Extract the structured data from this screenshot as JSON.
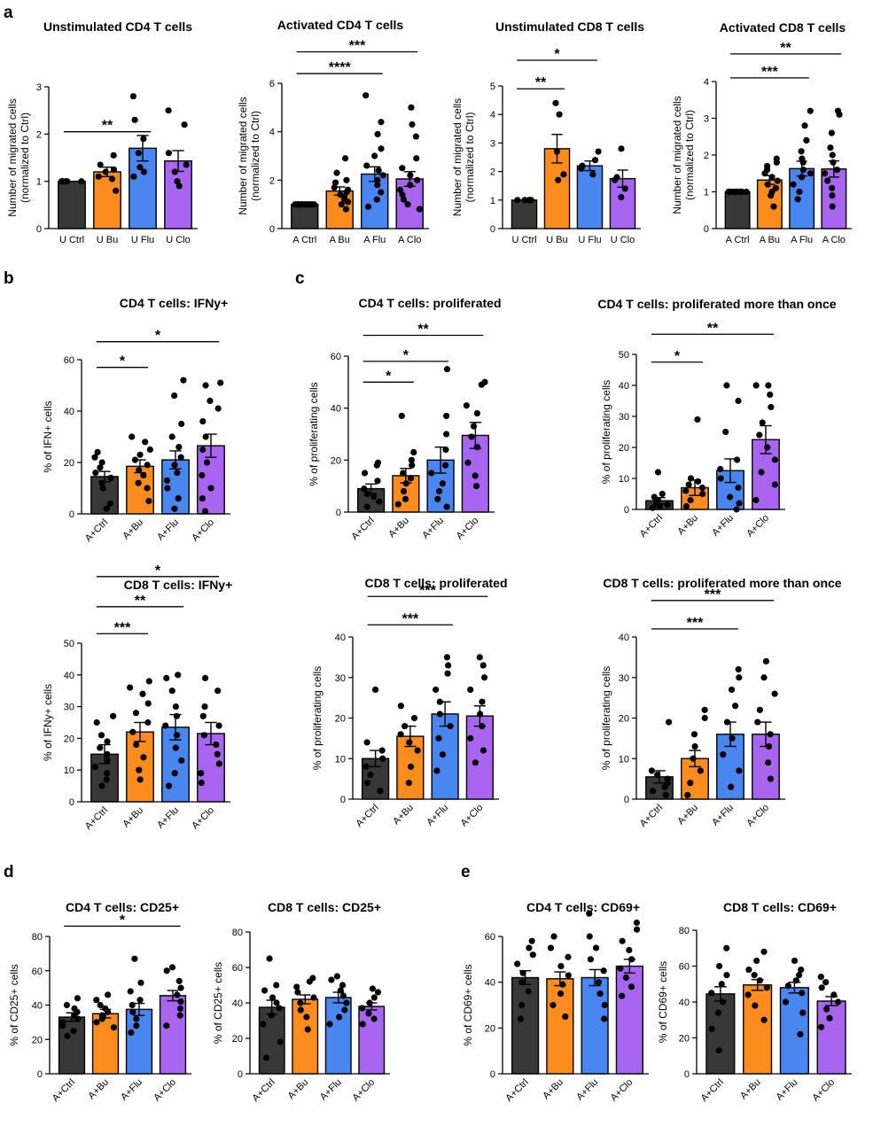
{
  "panel_labels": [
    "a",
    "b",
    "c",
    "d",
    "e"
  ],
  "colors": {
    "ctrl": "#383838",
    "bu": "#fb8c1d",
    "flu": "#4a86ef",
    "clo": "#a865f0"
  },
  "chart_data": [
    {
      "type": "bar",
      "panel": "a",
      "title": "Unstimulated CD4 T cells",
      "ylabel": "Number of migrated cells\n(normalized to Ctrl)",
      "categories": [
        "U Ctrl",
        "U Bu",
        "U Flu",
        "U Clo"
      ],
      "ylim": [
        0,
        3
      ],
      "yticks": [
        0,
        1,
        2,
        3
      ],
      "values": [
        1.0,
        1.2,
        1.7,
        1.43
      ],
      "errors": [
        0.0,
        0.1,
        0.27,
        0.22
      ],
      "points": [
        [
          1,
          1,
          1,
          1,
          1,
          1,
          1
        ],
        [
          0.8,
          1.05,
          1.1,
          1.2,
          1.25,
          1.35,
          1.55
        ],
        [
          1.1,
          1.2,
          1.3,
          1.6,
          1.9,
          2.3,
          2.8
        ],
        [
          0.9,
          1.0,
          1.2,
          1.35,
          1.6,
          2.2,
          2.5
        ]
      ],
      "significance": [
        {
          "from": 0,
          "to": 2,
          "label": "**",
          "y": 2.05
        }
      ]
    },
    {
      "type": "bar",
      "panel": "a",
      "title": "Activated CD4 T cells",
      "ylabel": "Number of migrated cells\n(normalized to Ctrl)",
      "categories": [
        "A Ctrl",
        "A Bu",
        "A Flu",
        "A Clo"
      ],
      "ylim": [
        0,
        6
      ],
      "yticks": [
        0,
        2,
        4,
        6
      ],
      "values": [
        1.0,
        1.55,
        2.25,
        2.05
      ],
      "errors": [
        0.0,
        0.17,
        0.3,
        0.3
      ],
      "points": [
        [
          1,
          1,
          1,
          1,
          1,
          1,
          1,
          1,
          1,
          1,
          1,
          1,
          1,
          1
        ],
        [
          0.8,
          1.0,
          1.1,
          1.2,
          1.3,
          1.4,
          1.5,
          1.6,
          1.7,
          1.9,
          2.0,
          2.3,
          2.9
        ],
        [
          0.9,
          1.2,
          1.5,
          1.8,
          2.0,
          2.2,
          2.4,
          2.6,
          3.0,
          3.3,
          3.9,
          4.4,
          5.5
        ],
        [
          0.8,
          1.0,
          1.2,
          1.4,
          1.6,
          1.8,
          2.0,
          2.2,
          2.5,
          2.9,
          3.8,
          4.3,
          5.0
        ]
      ],
      "significance": [
        {
          "from": 0,
          "to": 2,
          "label": "****",
          "y": 6.4
        },
        {
          "from": 0,
          "to": 3,
          "label": "***",
          "y": 7.3
        }
      ]
    },
    {
      "type": "bar",
      "panel": "a",
      "title": "Unstimulated CD8 T cells",
      "ylabel": "Number of migrated cells\n(normalized to Ctrl)",
      "categories": [
        "U Ctrl",
        "U Bu",
        "U Flu",
        "U Clo"
      ],
      "ylim": [
        0,
        5
      ],
      "yticks": [
        0,
        1,
        2,
        3,
        4,
        5
      ],
      "values": [
        1.0,
        2.8,
        2.2,
        1.75
      ],
      "errors": [
        0.0,
        0.5,
        0.17,
        0.3
      ],
      "points": [
        [
          1,
          1,
          1,
          1,
          1
        ],
        [
          1.7,
          1.9,
          2.7,
          4.0,
          4.4
        ],
        [
          1.9,
          2.1,
          2.2,
          2.4,
          2.7
        ],
        [
          1.1,
          1.4,
          1.7,
          1.8,
          2.8
        ]
      ],
      "significance": [
        {
          "from": 0,
          "to": 1,
          "label": "**",
          "y": 4.9
        },
        {
          "from": 0,
          "to": 2,
          "label": "*",
          "y": 5.9
        }
      ]
    },
    {
      "type": "bar",
      "panel": "a",
      "title": "Activated CD8 T cells",
      "ylabel": "Number of migrated cells\n(normalized to Ctrl)",
      "categories": [
        "A Ctrl",
        "A Bu",
        "A Flu",
        "A Clo"
      ],
      "ylim": [
        0,
        4
      ],
      "yticks": [
        0,
        1,
        2,
        3,
        4
      ],
      "values": [
        1.0,
        1.32,
        1.63,
        1.62
      ],
      "errors": [
        0.0,
        0.12,
        0.2,
        0.22
      ],
      "points": [
        [
          1,
          1,
          1,
          1,
          1,
          1,
          1,
          1,
          1,
          1,
          1,
          1,
          1
        ],
        [
          0.6,
          0.9,
          1.0,
          1.1,
          1.2,
          1.3,
          1.4,
          1.5,
          1.6,
          1.7,
          1.8,
          1.9
        ],
        [
          0.8,
          1.0,
          1.2,
          1.4,
          1.5,
          1.6,
          1.8,
          1.9,
          2.1,
          2.4,
          2.8,
          3.2
        ],
        [
          0.6,
          0.9,
          1.1,
          1.3,
          1.5,
          1.6,
          1.8,
          2.0,
          2.2,
          2.6,
          3.1,
          3.2
        ]
      ],
      "significance": [
        {
          "from": 0,
          "to": 2,
          "label": "***",
          "y": 4.1
        },
        {
          "from": 0,
          "to": 3,
          "label": "**",
          "y": 4.75
        }
      ]
    },
    {
      "type": "bar",
      "panel": "b",
      "title": "CD4 T cells: IFNy+",
      "ylabel": "% of  IFN+ cells",
      "categories": [
        "A+Ctrl",
        "A+Bu",
        "A+Flu",
        "A+Clo"
      ],
      "ylim": [
        0,
        60
      ],
      "yticks": [
        0,
        20,
        40,
        60
      ],
      "values": [
        14.5,
        18.5,
        21.0,
        26.5
      ],
      "errors": [
        2.0,
        2.5,
        3.5,
        4.5
      ],
      "points": [
        [
          2,
          4,
          10,
          12,
          14,
          16,
          18,
          20,
          22,
          24
        ],
        [
          5,
          10,
          12,
          15,
          17,
          19,
          21,
          23,
          25,
          28,
          30
        ],
        [
          2,
          6,
          10,
          13,
          16,
          19,
          22,
          26,
          30,
          35,
          46,
          52
        ],
        [
          1,
          6,
          10,
          15,
          20,
          25,
          30,
          36,
          41,
          44,
          50,
          51
        ]
      ],
      "significance": [
        {
          "from": 0,
          "to": 1,
          "label": "*",
          "y": 57
        },
        {
          "from": 0,
          "to": 3,
          "label": "*",
          "y": 67
        }
      ]
    },
    {
      "type": "bar",
      "panel": "c",
      "title": "CD4 T cells: proliferated",
      "ylabel": "% of proliferating cells",
      "categories": [
        "A+Ctrl",
        "A+Bu",
        "A+Flu",
        "A+Clo"
      ],
      "ylim": [
        0,
        60
      ],
      "yticks": [
        0,
        20,
        40,
        60
      ],
      "values": [
        9.0,
        14.0,
        20.0,
        29.5
      ],
      "errors": [
        1.8,
        2.8,
        5.0,
        5.0
      ],
      "points": [
        [
          2,
          4,
          6,
          7,
          9,
          12,
          15,
          18,
          19
        ],
        [
          3,
          5,
          8,
          11,
          13,
          15,
          18,
          20,
          23,
          37
        ],
        [
          2,
          5,
          8,
          11,
          15,
          18,
          24,
          30,
          37,
          55
        ],
        [
          10,
          14,
          19,
          25,
          29,
          33,
          38,
          41,
          49,
          50
        ]
      ],
      "significance": [
        {
          "from": 0,
          "to": 1,
          "label": "*",
          "y": 50
        },
        {
          "from": 0,
          "to": 2,
          "label": "*",
          "y": 58
        },
        {
          "from": 0,
          "to": 3,
          "label": "**",
          "y": 68
        }
      ]
    },
    {
      "type": "bar",
      "panel": "c",
      "title": "CD4 T cells: proliferated more than once",
      "ylabel": "% of proliferating cells",
      "categories": [
        "A+Ctrl",
        "A+Bu",
        "A+Flu",
        "A+Clo"
      ],
      "ylim": [
        0,
        50
      ],
      "yticks": [
        0,
        10,
        20,
        30,
        40,
        50
      ],
      "values": [
        2.8,
        7.0,
        12.5,
        22.5
      ],
      "errors": [
        1.0,
        2.5,
        3.8,
        4.5
      ],
      "points": [
        [
          0.5,
          1,
          1.5,
          2,
          3,
          4,
          5,
          12
        ],
        [
          1,
          3,
          5,
          6,
          7,
          8,
          9,
          10,
          29
        ],
        [
          0,
          2,
          4,
          7,
          10,
          13,
          16,
          25,
          35,
          40
        ],
        [
          3,
          8,
          12,
          16,
          20,
          24,
          28,
          33,
          37,
          40,
          40
        ]
      ],
      "significance": [
        {
          "from": 0,
          "to": 1,
          "label": "*",
          "y": 47.5
        },
        {
          "from": 0,
          "to": 3,
          "label": "**",
          "y": 56.5
        }
      ]
    },
    {
      "type": "bar",
      "panel": "b",
      "title": "CD8 T cells: IFNy+",
      "ylabel": "% of IFNy+ cells",
      "categories": [
        "A+Ctrl",
        "A+Bu",
        "A+Flu",
        "A+Clo"
      ],
      "ylim": [
        0,
        50
      ],
      "yticks": [
        0,
        10,
        20,
        30,
        40,
        50
      ],
      "values": [
        15.0,
        22.0,
        23.5,
        21.5
      ],
      "errors": [
        3.0,
        3.0,
        4.0,
        3.5
      ],
      "points": [
        [
          5,
          7,
          9,
          11,
          13,
          15,
          17,
          19,
          21,
          25,
          27
        ],
        [
          7,
          10,
          14,
          18,
          22,
          25,
          28,
          31,
          34,
          36,
          38
        ],
        [
          5,
          9,
          13,
          17,
          21,
          24,
          27,
          30,
          35,
          39,
          40
        ],
        [
          6,
          9,
          12,
          15,
          18,
          21,
          24,
          27,
          30,
          35,
          39
        ]
      ],
      "significance": [
        {
          "from": 0,
          "to": 1,
          "label": "***",
          "y": 53
        },
        {
          "from": 0,
          "to": 2,
          "label": "**",
          "y": 61.5
        },
        {
          "from": 0,
          "to": 3,
          "label": "*",
          "y": 71
        }
      ]
    },
    {
      "type": "bar",
      "panel": "c",
      "title": "CD8 T cells: proliferated",
      "ylabel": "% of proliferating cells",
      "categories": [
        "A+Ctrl",
        "A+Bu",
        "A+Flu",
        "A+Clo"
      ],
      "ylim": [
        0,
        40
      ],
      "yticks": [
        0,
        10,
        20,
        30,
        40
      ],
      "values": [
        10.0,
        15.5,
        21.0,
        20.5
      ],
      "errors": [
        2.0,
        2.5,
        3.0,
        2.5
      ],
      "points": [
        [
          2,
          4,
          6,
          8,
          10,
          12,
          14,
          27
        ],
        [
          4,
          8,
          12,
          14,
          16,
          18,
          20,
          23
        ],
        [
          7,
          11,
          15,
          18,
          21,
          24,
          27,
          31,
          33,
          35
        ],
        [
          9,
          12,
          15,
          18,
          21,
          24,
          27,
          30,
          33,
          35
        ]
      ],
      "significance": [
        {
          "from": 0,
          "to": 2,
          "label": "***",
          "y": 43
        },
        {
          "from": 0,
          "to": 3,
          "label": "***",
          "y": 50
        }
      ]
    },
    {
      "type": "bar",
      "panel": "c",
      "title": "CD8 T cells: proliferated more than once",
      "ylabel": "% of proliferating cells",
      "categories": [
        "A+Ctrl",
        "A+Bu",
        "A+Flu",
        "A+Clo"
      ],
      "ylim": [
        0,
        40
      ],
      "yticks": [
        0,
        10,
        20,
        30,
        40
      ],
      "values": [
        5.5,
        10.0,
        16.0,
        16.0
      ],
      "errors": [
        1.5,
        2.0,
        3.0,
        3.0
      ],
      "points": [
        [
          1,
          2,
          3,
          4,
          5,
          6,
          7,
          19
        ],
        [
          1,
          4,
          7,
          10,
          13,
          16,
          20,
          22
        ],
        [
          3,
          7,
          11,
          15,
          19,
          23,
          27,
          30,
          32
        ],
        [
          5,
          9,
          13,
          16,
          19,
          22,
          26,
          30,
          34
        ]
      ],
      "significance": [
        {
          "from": 0,
          "to": 2,
          "label": "***",
          "y": 42
        },
        {
          "from": 0,
          "to": 3,
          "label": "***",
          "y": 49
        }
      ]
    },
    {
      "type": "bar",
      "panel": "d",
      "title": "CD4 T cells: CD25+",
      "ylabel": "% of CD25+ cells",
      "categories": [
        "A+Ctrl",
        "A+Bu",
        "A+Flu",
        "A+Clo"
      ],
      "ylim": [
        0,
        80
      ],
      "yticks": [
        0,
        20,
        40,
        60,
        80
      ],
      "values": [
        33.0,
        35.0,
        37.5,
        45.5
      ],
      "errors": [
        2.5,
        2.5,
        3.5,
        3.0
      ],
      "points": [
        [
          22,
          25,
          28,
          30,
          32,
          34,
          36,
          38,
          40,
          44
        ],
        [
          27,
          30,
          32,
          34,
          36,
          38,
          40,
          43,
          46
        ],
        [
          24,
          28,
          32,
          36,
          40,
          43,
          48,
          53,
          67
        ],
        [
          28,
          34,
          38,
          42,
          46,
          50,
          54,
          60,
          62
        ]
      ],
      "significance": [
        {
          "from": 0,
          "to": 3,
          "label": "*",
          "y": 86
        }
      ]
    },
    {
      "type": "bar",
      "panel": "d",
      "title": "CD8 T cells: CD25+",
      "ylabel": "% of CD25+ cells",
      "categories": [
        "A+Ctrl",
        "A+Bu",
        "A+Flu",
        "A+Clo"
      ],
      "ylim": [
        0,
        80
      ],
      "yticks": [
        0,
        20,
        40,
        60,
        80
      ],
      "values": [
        37.5,
        42.0,
        43.0,
        38.0
      ],
      "errors": [
        4.0,
        2.5,
        3.0,
        2.0
      ],
      "points": [
        [
          9,
          18,
          28,
          33,
          37,
          40,
          43,
          47,
          50,
          65
        ],
        [
          25,
          32,
          36,
          40,
          43,
          46,
          49,
          52,
          54
        ],
        [
          28,
          32,
          36,
          40,
          44,
          47,
          50,
          53,
          55
        ],
        [
          28,
          31,
          34,
          37,
          40,
          43,
          46,
          48
        ]
      ],
      "significance": []
    },
    {
      "type": "bar",
      "panel": "e",
      "title": "CD4 T cells: CD69+",
      "ylabel": "% of CD69+ cells",
      "categories": [
        "A+Ctrl",
        "A+Bu",
        "A+Flu",
        "A+Clo"
      ],
      "ylim": [
        0,
        60
      ],
      "yticks": [
        0,
        20,
        40,
        60
      ],
      "values": [
        42.0,
        41.5,
        42.0,
        47.0
      ],
      "errors": [
        3.0,
        3.0,
        3.5,
        3.0
      ],
      "points": [
        [
          24,
          30,
          36,
          40,
          44,
          48,
          52,
          55,
          58
        ],
        [
          25,
          30,
          35,
          39,
          43,
          47,
          51,
          55,
          60
        ],
        [
          24,
          30,
          35,
          40,
          45,
          50,
          55,
          60,
          70
        ],
        [
          34,
          38,
          42,
          46,
          50,
          54,
          58,
          63,
          66
        ]
      ],
      "significance": []
    },
    {
      "type": "bar",
      "panel": "e",
      "title": "CD8 T cells: CD69+",
      "ylabel": "% of CD69+ cells",
      "categories": [
        "A+Ctrl",
        "A+Bu",
        "A+Flu",
        "A+Clo"
      ],
      "ylim": [
        0,
        80
      ],
      "yticks": [
        0,
        20,
        40,
        60,
        80
      ],
      "values": [
        44.5,
        49.5,
        48.0,
        40.5
      ],
      "errors": [
        4.0,
        3.0,
        3.0,
        2.5
      ],
      "points": [
        [
          13,
          25,
          34,
          40,
          45,
          50,
          55,
          60,
          70
        ],
        [
          30,
          38,
          44,
          48,
          52,
          55,
          58,
          63,
          68
        ],
        [
          22,
          34,
          40,
          45,
          49,
          52,
          55,
          58,
          63
        ],
        [
          26,
          31,
          36,
          40,
          44,
          48,
          51,
          54
        ]
      ],
      "significance": []
    }
  ]
}
